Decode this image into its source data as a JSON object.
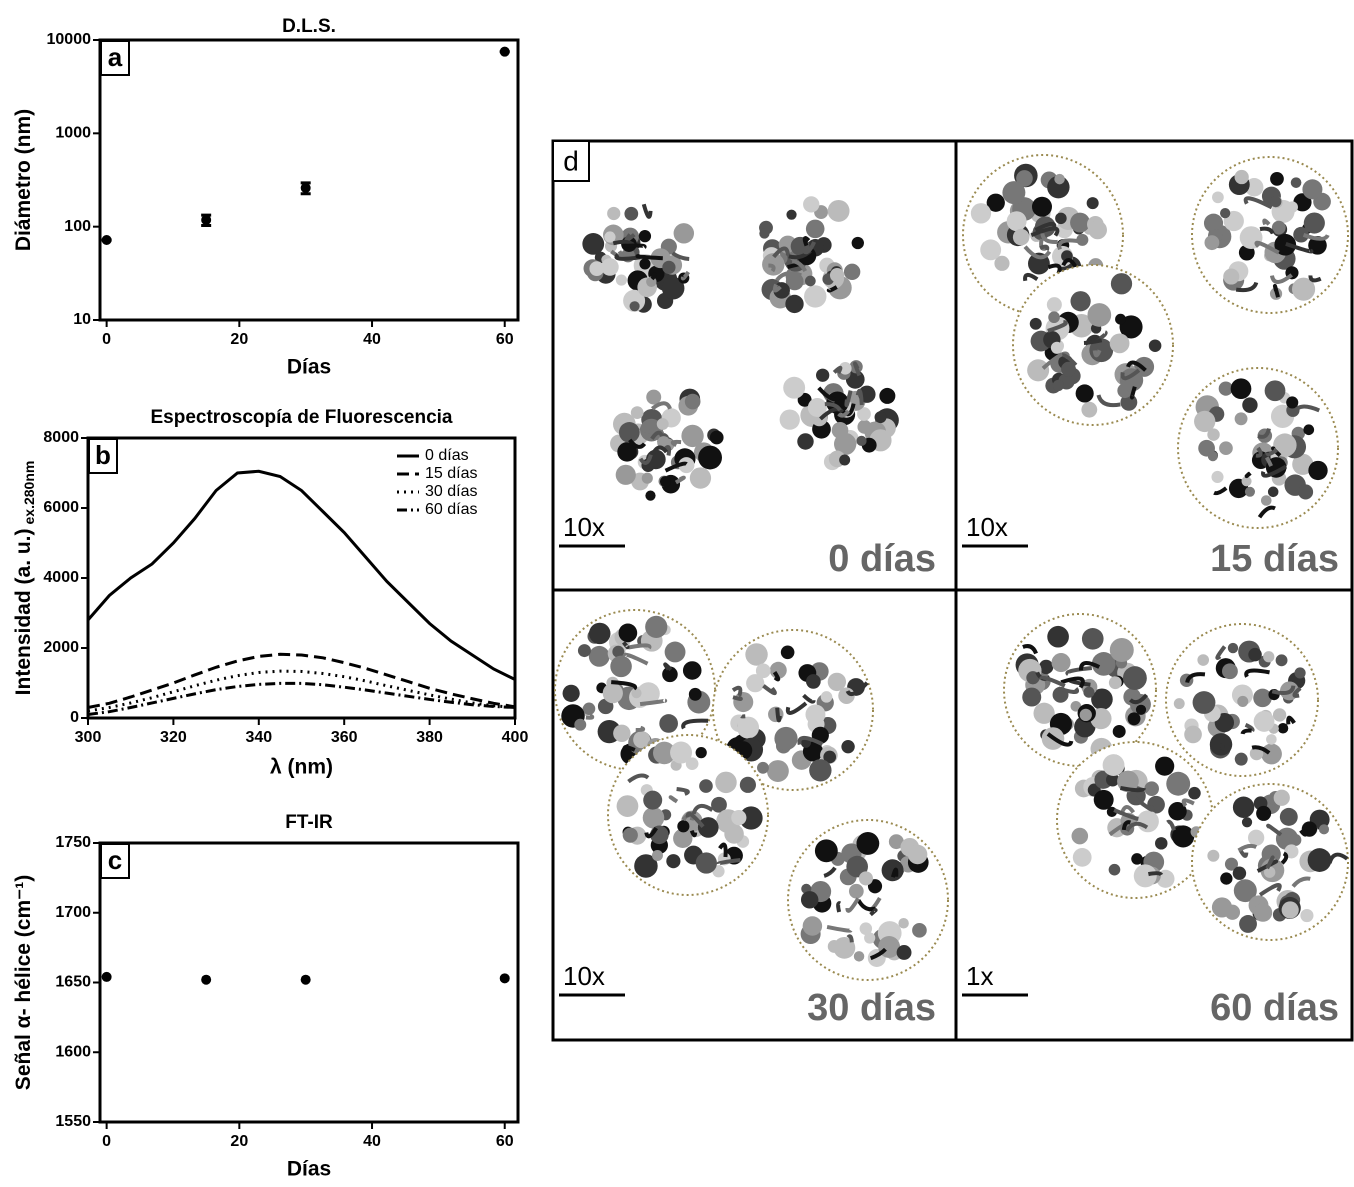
{
  "chart_data": [
    {
      "type": "scatter",
      "title": "D.L.S.",
      "panel_label": "a",
      "x_label": "Días",
      "y_label": "Diámetro (nm)",
      "x": [
        0,
        15,
        30,
        60
      ],
      "values": [
        72,
        118,
        260,
        7500
      ],
      "errors": [
        0,
        15,
        35,
        0
      ],
      "color": "#000000",
      "xlim": [
        -1,
        62
      ],
      "xticks": [
        0,
        20,
        40,
        60
      ],
      "log_y": true,
      "ylim": [
        10,
        10000
      ],
      "yticks": [
        10,
        100,
        1000,
        10000
      ]
    },
    {
      "type": "line",
      "title": "Espectroscopía de Fluorescencia",
      "panel_label": "b",
      "x_label": "λ (nm)",
      "y_label": "Intensidad (a. u.)",
      "y_label_sub": "ex.280nm",
      "x": [
        300,
        305,
        310,
        315,
        320,
        325,
        330,
        335,
        340,
        345,
        350,
        355,
        360,
        365,
        370,
        375,
        380,
        385,
        390,
        395,
        400
      ],
      "series": [
        {
          "name": "0 días",
          "color": "#000000",
          "dash": "solid",
          "values": [
            2800,
            3500,
            4000,
            4400,
            5000,
            5700,
            6500,
            7000,
            7050,
            6900,
            6500,
            5900,
            5300,
            4600,
            3900,
            3300,
            2700,
            2200,
            1800,
            1400,
            1100
          ]
        },
        {
          "name": "15 días",
          "color": "#000000",
          "dash": "dashed",
          "values": [
            300,
            420,
            600,
            800,
            1000,
            1230,
            1450,
            1630,
            1760,
            1820,
            1800,
            1720,
            1580,
            1420,
            1230,
            1040,
            850,
            690,
            550,
            420,
            320
          ]
        },
        {
          "name": "30 días",
          "color": "#000000",
          "dash": "dotted",
          "values": [
            200,
            300,
            430,
            580,
            750,
            920,
            1080,
            1210,
            1300,
            1340,
            1330,
            1270,
            1180,
            1060,
            920,
            790,
            660,
            540,
            430,
            350,
            300
          ]
        },
        {
          "name": "60 días",
          "color": "#000000",
          "dash": "dashdot",
          "values": [
            100,
            180,
            300,
            430,
            560,
            690,
            810,
            900,
            960,
            990,
            990,
            950,
            880,
            800,
            710,
            620,
            530,
            450,
            380,
            330,
            300
          ]
        }
      ],
      "legend": "upper right",
      "xlim": [
        300,
        400
      ],
      "xticks": [
        300,
        320,
        340,
        360,
        380,
        400
      ],
      "ylim": [
        0,
        8000
      ],
      "yticks": [
        0,
        2000,
        4000,
        6000,
        8000
      ]
    },
    {
      "type": "scatter",
      "title": "FT-IR",
      "panel_label": "c",
      "x_label": "Días",
      "y_label": "Señal α- hélice (cm⁻¹)",
      "x": [
        0,
        15,
        30,
        60
      ],
      "values": [
        1654,
        1652,
        1652,
        1653
      ],
      "color": "#000000",
      "xlim": [
        -1,
        62
      ],
      "xticks": [
        0,
        20,
        40,
        60
      ],
      "ylim": [
        1550,
        1750
      ],
      "yticks": [
        1550,
        1600,
        1650,
        1700,
        1750
      ]
    }
  ],
  "diagram": {
    "label": "d",
    "panels": [
      {
        "scale": "10x",
        "time": "0 días"
      },
      {
        "scale": "10x",
        "time": "15 días"
      },
      {
        "scale": "10x",
        "time": "30 días"
      },
      {
        "scale": "1x",
        "time": "60 días"
      }
    ]
  }
}
